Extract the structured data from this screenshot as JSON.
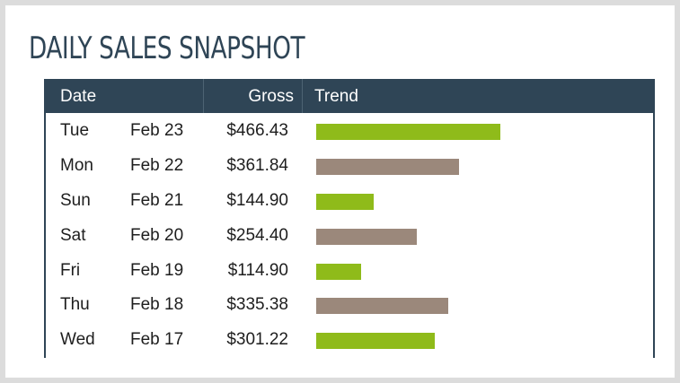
{
  "title": "DAILY SALES SNAPSHOT",
  "table": {
    "headers": {
      "date": "Date",
      "gross": "Gross",
      "trend": "Trend"
    },
    "rows": [
      {
        "day": "Tue",
        "date": "Feb 23",
        "gross": "$466.43",
        "gross_value": 466.43,
        "trend_color": "#8fbb1a"
      },
      {
        "day": "Mon",
        "date": "Feb 22",
        "gross": "$361.84",
        "gross_value": 361.84,
        "trend_color": "#9b887b"
      },
      {
        "day": "Sun",
        "date": "Feb 21",
        "gross": "$144.90",
        "gross_value": 144.9,
        "trend_color": "#8fbb1a"
      },
      {
        "day": "Sat",
        "date": "Feb 20",
        "gross": "$254.40",
        "gross_value": 254.4,
        "trend_color": "#9b887b"
      },
      {
        "day": "Fri",
        "date": "Feb 19",
        "gross": "$114.90",
        "gross_value": 114.9,
        "trend_color": "#8fbb1a"
      },
      {
        "day": "Thu",
        "date": "Feb 18",
        "gross": "$335.38",
        "gross_value": 335.38,
        "trend_color": "#9b887b"
      },
      {
        "day": "Wed",
        "date": "Feb 17",
        "gross": "$301.22",
        "gross_value": 301.22,
        "trend_color": "#8fbb1a"
      }
    ]
  },
  "colors": {
    "header_bg": "#2f4556",
    "title": "#2f4556",
    "bar_green": "#8fbb1a",
    "bar_taupe": "#9b887b"
  }
}
